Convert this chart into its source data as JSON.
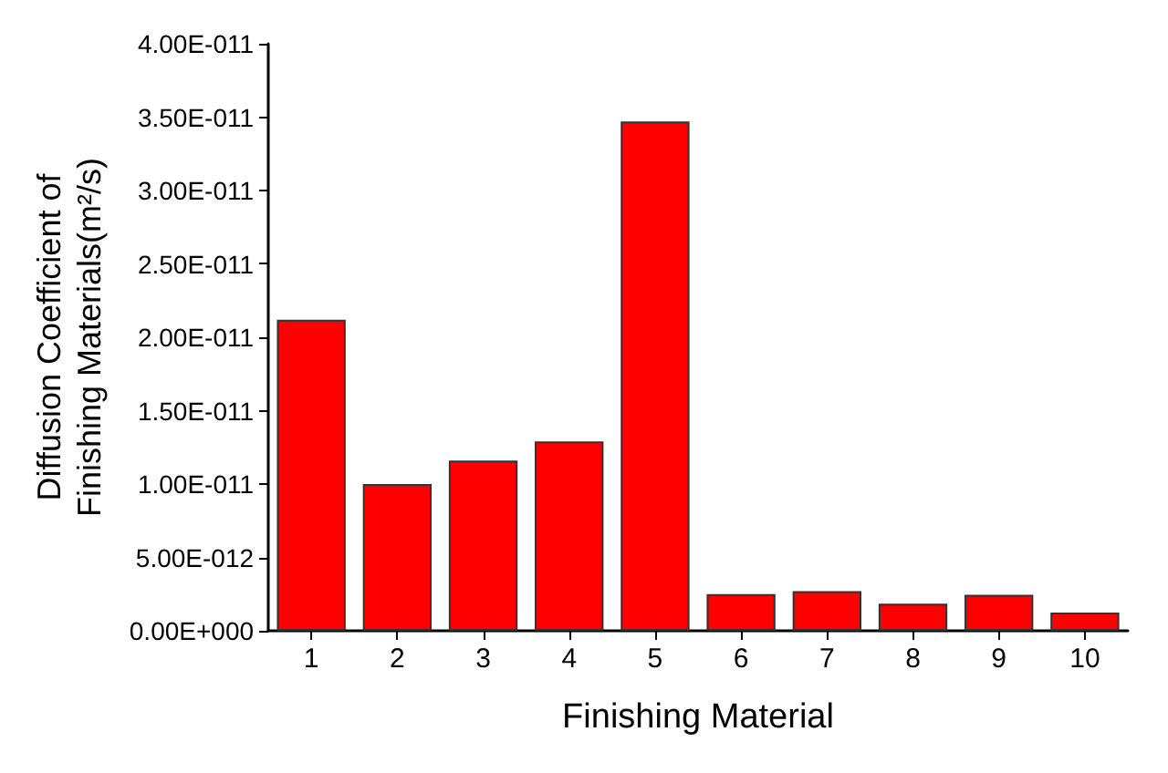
{
  "chart_data": {
    "type": "bar",
    "xlabel": "Finishing Material",
    "ylabel": "Diffusion Coefficient of Finishing Materials(m²/s)",
    "categories": [
      "1",
      "2",
      "3",
      "4",
      "5",
      "6",
      "7",
      "8",
      "9",
      "10"
    ],
    "values": [
      2.12e-11,
      1e-11,
      1.16e-11,
      1.29e-11,
      3.47e-11,
      2.5e-12,
      2.7e-12,
      1.85e-12,
      2.45e-12,
      1.25e-12
    ],
    "color": "#ff0000",
    "ylim": [
      0,
      4e-11
    ],
    "yticks": [
      {
        "value": 0,
        "label": "0.00E+000"
      },
      {
        "value": 5e-12,
        "label": "5.00E-012"
      },
      {
        "value": 1e-11,
        "label": "1.00E-011"
      },
      {
        "value": 1.5e-11,
        "label": "1.50E-011"
      },
      {
        "value": 2e-11,
        "label": "2.00E-011"
      },
      {
        "value": 2.5e-11,
        "label": "2.50E-011"
      },
      {
        "value": 3e-11,
        "label": "3.00E-011"
      },
      {
        "value": 3.5e-11,
        "label": "3.50E-011"
      },
      {
        "value": 4e-11,
        "label": "4.00E-011"
      }
    ],
    "grid": false
  }
}
